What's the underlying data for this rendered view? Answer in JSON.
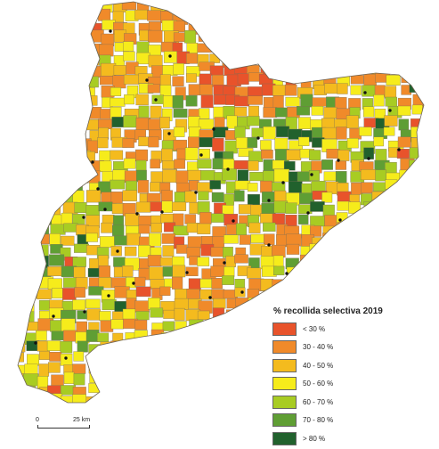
{
  "legend": {
    "title": "% recollida selectiva 2019",
    "items": [
      {
        "label": "< 30 %",
        "color": "#e8532b"
      },
      {
        "label": "30 - 40 %",
        "color": "#f08a2a"
      },
      {
        "label": "40 - 50 %",
        "color": "#f4bb1e"
      },
      {
        "label": "50 - 60 %",
        "color": "#f6ec1b"
      },
      {
        "label": "60 - 70 %",
        "color": "#a8cc23"
      },
      {
        "label": "70 - 80 %",
        "color": "#5f9e34"
      },
      {
        "label": "> 80 %",
        "color": "#21612d"
      }
    ]
  },
  "scale": {
    "start_label": "0",
    "end_label": "25 km"
  },
  "map": {
    "background": "#ffffff",
    "border_color": "#7b6d56",
    "marker_color": "#111111"
  }
}
